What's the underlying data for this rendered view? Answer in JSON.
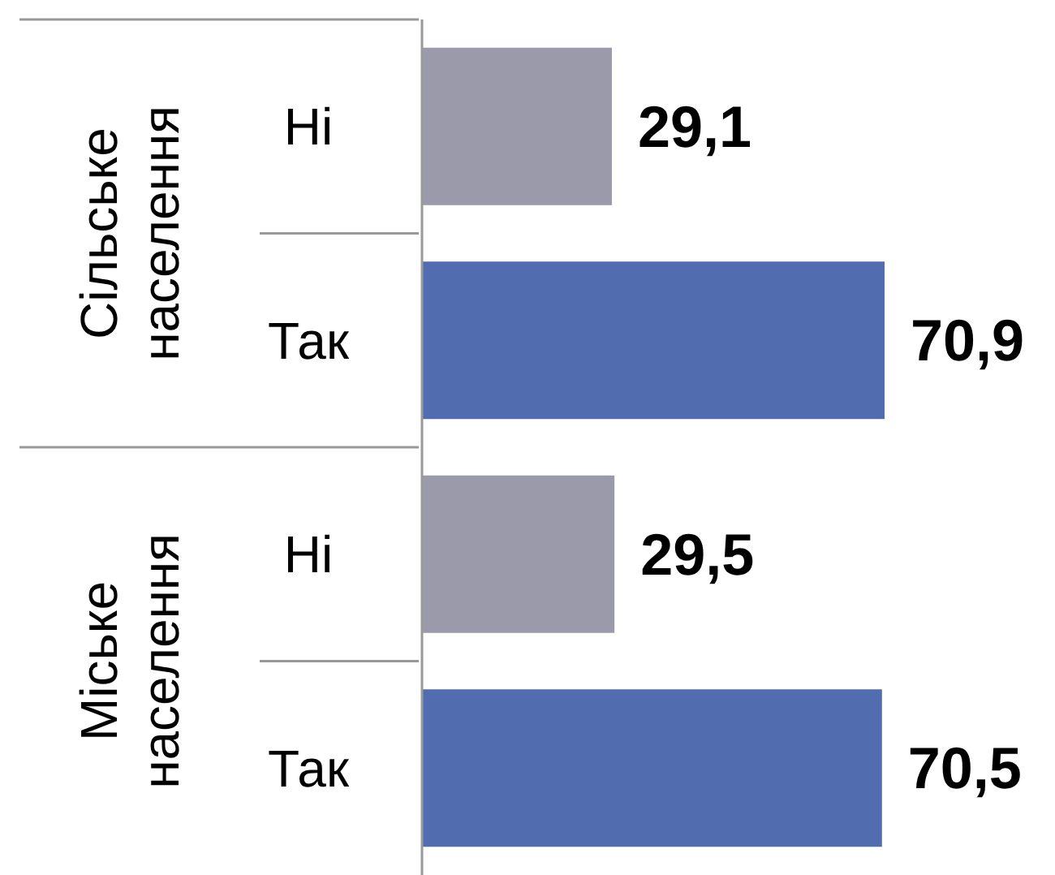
{
  "chart_data": {
    "type": "bar",
    "orientation": "horizontal",
    "categories": [
      "Ні",
      "Так",
      "Ні",
      "Так"
    ],
    "values": [
      29.1,
      70.9,
      29.5,
      70.5
    ],
    "colors": [
      "#9a9aab",
      "#516db0",
      "#9a9aab",
      "#516db0"
    ],
    "value_labels": [
      "29,1",
      "70,9",
      "29,5",
      "70,5"
    ],
    "annotations": [
      "Сільське населення",
      "Міське населення"
    ]
  }
}
